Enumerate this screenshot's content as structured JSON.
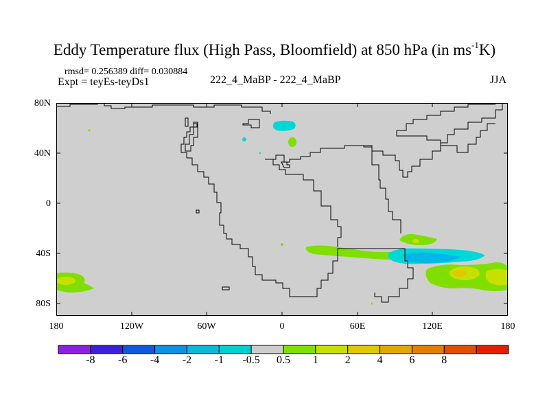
{
  "title_main": "Eddy Temperature flux (High Pass, Bloomfield) at 850 hPa (in ms",
  "title_sup": "-1",
  "title_end": "K)",
  "stats_line": "rmsd= 0.256389 diff= 0.030884",
  "expt_line": "Expt = teyEs-teyDs1",
  "center_label": "222_4_MaBP - 222_4_MaBP",
  "season_label": "JJA",
  "lat_ticks": [
    "80N",
    "40N",
    "0",
    "40S",
    "80S"
  ],
  "lon_ticks": [
    "180",
    "120W",
    "60W",
    "0",
    "60E",
    "120E",
    "180"
  ],
  "colors": {
    "land_gray": "#cfcfcf",
    "light_green": "#80df00",
    "yellow_green": "#c8e000",
    "yellow": "#e0c800",
    "cyan": "#00d8d8",
    "blue_cyan": "#00b8e8"
  },
  "colorbar": {
    "colors": [
      "#8a20e0",
      "#3a20d8",
      "#1058e0",
      "#1090e0",
      "#10b8d8",
      "#00d0d0",
      "#cccccc",
      "#80df00",
      "#c8e000",
      "#e0c800",
      "#e0a800",
      "#e08000",
      "#e05000",
      "#e02000"
    ],
    "labels": [
      "-8",
      "-6",
      "-4",
      "-2",
      "-1",
      "-0.5",
      "0.5",
      "1",
      "2",
      "4",
      "6",
      "8"
    ]
  }
}
